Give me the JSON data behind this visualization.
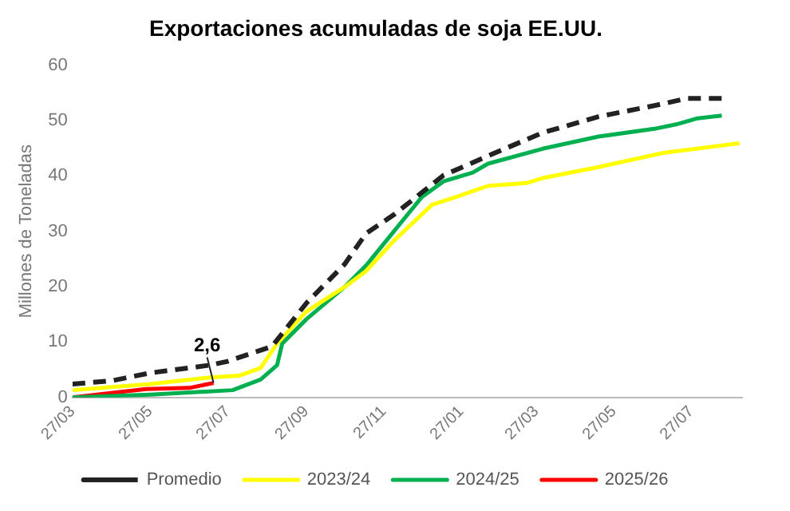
{
  "chart_data": {
    "type": "line",
    "title": "Exportaciones acumuladas de soja EE.UU.",
    "ylabel": "Millones de Toneladas",
    "xlim": [
      "2024-03-27",
      "2025-09-05"
    ],
    "xticks": [
      {
        "value": "2024-03-27",
        "label": "27/03"
      },
      {
        "value": "2024-05-27",
        "label": "27/05"
      },
      {
        "value": "2024-07-27",
        "label": "27/07"
      },
      {
        "value": "2024-09-27",
        "label": "27/09"
      },
      {
        "value": "2024-11-27",
        "label": "27/11"
      },
      {
        "value": "2025-01-27",
        "label": "27/01"
      },
      {
        "value": "2025-03-27",
        "label": "27/03"
      },
      {
        "value": "2025-05-27",
        "label": "27/05"
      },
      {
        "value": "2025-07-27",
        "label": "27/07"
      }
    ],
    "ylim": [
      0,
      60
    ],
    "yticks": [
      0,
      10,
      20,
      30,
      40,
      50,
      60
    ],
    "grid": false,
    "legend": "bottom",
    "series": [
      {
        "name": "Promedio",
        "color": "#222222",
        "line_style": "dashed",
        "x": [
          "2024-03-27",
          "2024-04-27",
          "2024-05-27",
          "2024-07-13",
          "2024-07-27",
          "2024-08-31",
          "2024-09-27",
          "2024-10-27",
          "2024-11-13",
          "2024-12-05",
          "2025-01-13",
          "2025-02-21",
          "2025-04-01",
          "2025-05-15",
          "2025-06-28",
          "2025-07-24",
          "2025-08-20"
        ],
        "values": [
          2.4,
          3,
          4.4,
          5.8,
          6.5,
          9.2,
          17,
          24,
          29.6,
          33,
          40.1,
          44,
          47.8,
          50.7,
          52.7,
          54,
          54
        ]
      },
      {
        "name": "2023/24",
        "color": "#ffff00",
        "line_style": "solid",
        "x": [
          "2024-03-27",
          "2024-05-27",
          "2024-07-13",
          "2024-08-05",
          "2024-08-22",
          "2024-09-04",
          "2024-09-27",
          "2024-10-27",
          "2024-11-13",
          "2024-12-05",
          "2025-01-04",
          "2025-01-23",
          "2025-02-17",
          "2025-03-19",
          "2025-04-01",
          "2025-05-15",
          "2025-07-06",
          "2025-09-03"
        ],
        "values": [
          1.3,
          2.4,
          3.6,
          3.9,
          5.3,
          9.7,
          15.5,
          19.9,
          22.8,
          28.3,
          34.8,
          36.2,
          38.2,
          38.7,
          39.6,
          41.6,
          44.2,
          45.9
        ]
      },
      {
        "name": "2024/25",
        "color": "#00b050",
        "line_style": "solid",
        "x": [
          "2024-03-27",
          "2024-05-27",
          "2024-07-31",
          "2024-08-22",
          "2024-09-04",
          "2024-09-08",
          "2024-09-27",
          "2024-10-27",
          "2024-11-13",
          "2024-12-05",
          "2024-12-27",
          "2025-01-13",
          "2025-02-05",
          "2025-02-17",
          "2025-04-01",
          "2025-05-15",
          "2025-06-28",
          "2025-07-15",
          "2025-08-01",
          "2025-08-20"
        ],
        "values": [
          0,
          0.5,
          1.3,
          3.2,
          5.8,
          9.7,
          14.1,
          19.9,
          23.8,
          30,
          36.2,
          39,
          40.6,
          42.2,
          44.9,
          47.1,
          48.5,
          49.3,
          50.4,
          50.9
        ]
      },
      {
        "name": "2025/26",
        "color": "#ff0000",
        "line_style": "solid",
        "x": [
          "2024-03-27",
          "2024-05-24",
          "2024-06-27",
          "2024-07-16"
        ],
        "values": [
          0,
          1.5,
          1.7,
          2.6
        ]
      }
    ],
    "annotations": [
      {
        "text": "2,6",
        "x": "2024-07-16",
        "y": 2.6
      }
    ]
  }
}
